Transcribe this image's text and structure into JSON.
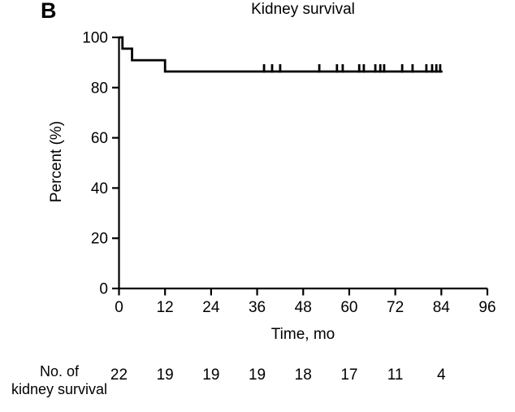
{
  "panel_label": "B",
  "chart_data": {
    "type": "line",
    "subtype": "kaplan-meier-step-curve",
    "title": "Kidney survival",
    "xlabel": "Time, mo",
    "ylabel": "Percent (%)",
    "xlim": [
      0,
      96
    ],
    "ylim": [
      0,
      100
    ],
    "x_ticks": [
      0,
      12,
      24,
      36,
      48,
      60,
      72,
      84,
      96
    ],
    "y_ticks": [
      0,
      20,
      40,
      60,
      80,
      100
    ],
    "grid": false,
    "legend": "none",
    "line_color": "#000000",
    "series": [
      {
        "name": "kidney survival",
        "step_points": [
          [
            0,
            100
          ],
          [
            0.9,
            100
          ],
          [
            0.9,
            95.5
          ],
          [
            3.4,
            95.5
          ],
          [
            3.4,
            90.9
          ],
          [
            12,
            90.9
          ],
          [
            12,
            86.4
          ],
          [
            84.3,
            86.4
          ]
        ],
        "censor_times": [
          37.8,
          39.9,
          42.0,
          52.2,
          56.8,
          58.3,
          62.6,
          63.8,
          66.8,
          68.1,
          69.1,
          73.8,
          76.5,
          80.1,
          81.6,
          82.7,
          83.7
        ],
        "censor_level": 86.4
      }
    ],
    "at_risk": {
      "label_line1": "No. of",
      "label_line2": "kidney survival",
      "times": [
        0,
        12,
        24,
        36,
        48,
        60,
        72,
        84
      ],
      "counts": [
        22,
        19,
        19,
        19,
        18,
        17,
        11,
        4
      ]
    }
  }
}
